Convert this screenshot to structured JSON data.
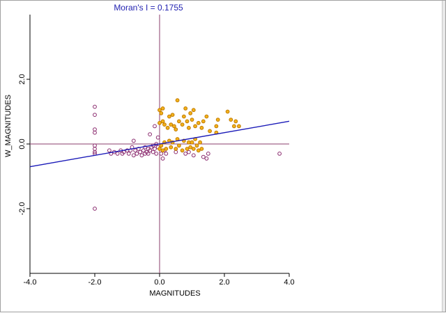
{
  "chart_data": {
    "type": "scatter",
    "title": "Moran's I = 0.1755",
    "xlabel": "MAGNITUDES",
    "ylabel": "W_MAGNITUDES",
    "xlim": [
      -4.0,
      4.0
    ],
    "ylim": [
      -4.0,
      4.0
    ],
    "x_ticks": [
      -4.0,
      -2.0,
      0.0,
      2.0,
      4.0
    ],
    "x_tick_labels": [
      "-4.0",
      "-2.0",
      "0.0",
      "2.0",
      "4.0"
    ],
    "y_ticks": [
      -2.0,
      0.0,
      2.0
    ],
    "y_tick_labels": [
      "-2.0",
      "0.0",
      "2.0"
    ],
    "grid": false,
    "regression_line": {
      "slope": 0.1755,
      "intercept": 0.0,
      "color": "#1a1ab8"
    },
    "quadrant_line_color": "#8a3d6b",
    "series": [
      {
        "color": "#8a2a6e",
        "fill": "none",
        "points": [
          [
            -2.0,
            1.15
          ],
          [
            -2.0,
            0.9
          ],
          [
            -2.0,
            0.45
          ],
          [
            -2.0,
            0.35
          ],
          [
            -2.0,
            -0.05
          ],
          [
            -2.0,
            -0.15
          ],
          [
            -2.0,
            -0.25
          ],
          [
            -2.0,
            -0.3
          ],
          [
            -2.0,
            -2.0
          ],
          [
            -1.55,
            -0.2
          ],
          [
            -1.5,
            -0.3
          ],
          [
            -1.4,
            -0.25
          ],
          [
            -1.3,
            -0.3
          ],
          [
            -1.2,
            -0.2
          ],
          [
            -1.15,
            -0.3
          ],
          [
            -1.1,
            -0.25
          ],
          [
            -1.0,
            -0.2
          ],
          [
            -0.95,
            -0.3
          ],
          [
            -0.9,
            -0.2
          ],
          [
            -0.85,
            -0.1
          ],
          [
            -0.8,
            -0.35
          ],
          [
            -0.8,
            0.1
          ],
          [
            -0.75,
            -0.2
          ],
          [
            -0.7,
            -0.3
          ],
          [
            -0.65,
            -0.15
          ],
          [
            -0.6,
            -0.25
          ],
          [
            -0.55,
            -0.35
          ],
          [
            -0.5,
            -0.2
          ],
          [
            -0.45,
            -0.3
          ],
          [
            -0.45,
            -0.1
          ],
          [
            -0.4,
            -0.25
          ],
          [
            -0.35,
            -0.15
          ],
          [
            -0.35,
            -0.3
          ],
          [
            -0.3,
            0.3
          ],
          [
            -0.3,
            -0.2
          ],
          [
            -0.25,
            -0.1
          ],
          [
            -0.2,
            -0.25
          ],
          [
            -0.2,
            -0.05
          ],
          [
            -0.15,
            0.55
          ],
          [
            -0.15,
            -0.15
          ],
          [
            -0.1,
            -0.3
          ],
          [
            -0.1,
            0.0
          ],
          [
            -0.05,
            -0.1
          ],
          [
            -0.05,
            0.2
          ],
          [
            0.05,
            -0.3
          ],
          [
            0.1,
            -0.45
          ],
          [
            0.15,
            -0.2
          ],
          [
            0.2,
            -0.3
          ],
          [
            0.5,
            -0.25
          ],
          [
            0.8,
            -0.3
          ],
          [
            0.9,
            -0.25
          ],
          [
            1.05,
            -0.35
          ],
          [
            1.35,
            -0.4
          ],
          [
            1.45,
            -0.45
          ],
          [
            1.5,
            -0.3
          ],
          [
            3.7,
            -0.3
          ]
        ]
      },
      {
        "color": "#c07a00",
        "fill": "#f2b21c",
        "points": [
          [
            0.0,
            1.05
          ],
          [
            0.05,
            0.95
          ],
          [
            0.1,
            1.1
          ],
          [
            0.0,
            0.65
          ],
          [
            0.1,
            0.7
          ],
          [
            0.15,
            0.6
          ],
          [
            0.25,
            0.5
          ],
          [
            0.3,
            0.85
          ],
          [
            0.35,
            0.6
          ],
          [
            0.4,
            0.9
          ],
          [
            0.45,
            0.55
          ],
          [
            0.5,
            0.45
          ],
          [
            0.55,
            1.35
          ],
          [
            0.6,
            0.7
          ],
          [
            0.7,
            0.6
          ],
          [
            0.75,
            0.85
          ],
          [
            0.8,
            1.1
          ],
          [
            0.85,
            0.7
          ],
          [
            0.9,
            0.5
          ],
          [
            0.95,
            0.95
          ],
          [
            1.0,
            0.75
          ],
          [
            1.05,
            1.05
          ],
          [
            1.1,
            0.55
          ],
          [
            1.2,
            0.65
          ],
          [
            1.3,
            0.5
          ],
          [
            1.35,
            0.7
          ],
          [
            1.45,
            0.85
          ],
          [
            1.55,
            0.4
          ],
          [
            1.75,
            0.35
          ],
          [
            1.75,
            0.55
          ],
          [
            1.8,
            0.75
          ],
          [
            2.1,
            1.0
          ],
          [
            2.2,
            0.75
          ],
          [
            2.3,
            0.55
          ],
          [
            2.35,
            0.7
          ],
          [
            2.45,
            0.55
          ],
          [
            0.0,
            -0.15
          ],
          [
            0.05,
            -0.05
          ],
          [
            0.1,
            -0.2
          ],
          [
            0.15,
            0.05
          ],
          [
            0.2,
            -0.15
          ],
          [
            0.3,
            0.1
          ],
          [
            0.35,
            -0.1
          ],
          [
            0.4,
            0.05
          ],
          [
            0.5,
            -0.15
          ],
          [
            0.55,
            0.15
          ],
          [
            0.6,
            -0.05
          ],
          [
            0.7,
            -0.2
          ],
          [
            0.75,
            0.1
          ],
          [
            0.85,
            -0.15
          ],
          [
            0.9,
            0.05
          ],
          [
            0.95,
            -0.1
          ],
          [
            1.0,
            0.05
          ],
          [
            1.05,
            -0.15
          ],
          [
            1.1,
            0.15
          ],
          [
            1.15,
            -0.05
          ],
          [
            1.2,
            -0.2
          ],
          [
            1.25,
            0.05
          ],
          [
            1.3,
            -0.15
          ]
        ]
      }
    ]
  }
}
